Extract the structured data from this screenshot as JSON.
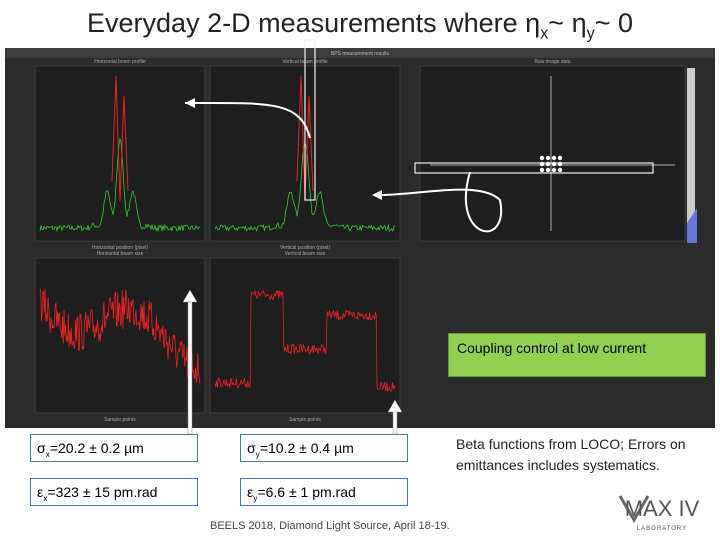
{
  "title": {
    "lead": "Everyday 2-D measurements where η",
    "sub1": "x",
    "mid": "~ η",
    "sub2": "y",
    "tail": "~ 0"
  },
  "screenshot": {
    "window_title": "BPS measurement results",
    "panels": [
      "Horizontal beam profile",
      "Vertical beam profile",
      "Raw image data",
      "Horizontal beam size",
      "Vertical beam size"
    ],
    "x_labels": [
      "Horizontal position (pixel)",
      "Vertical position (pixel)",
      "Sample points",
      "Sample points"
    ]
  },
  "callout": "Coupling control at low current",
  "results": [
    {
      "symbol": "σ",
      "sub": "x",
      "text": "=20.2 ± 0.2 µm"
    },
    {
      "symbol": "σ",
      "sub": "y",
      "text": "=10.2 ± 0.4 µm"
    },
    {
      "symbol": "ε",
      "sub": "x",
      "text": "=323 ± 15 pm.rad"
    },
    {
      "symbol": "ε",
      "sub": "y",
      "text": "=6.6 ± 1 pm.rad"
    }
  ],
  "note": "Beta functions from LOCO; Errors on emittances includes systematics.",
  "footer": "BEELS 2018, Diamond Light Source, April 18-19.",
  "logo": {
    "name": "MAX IV",
    "tagline": "LABORATORY"
  }
}
